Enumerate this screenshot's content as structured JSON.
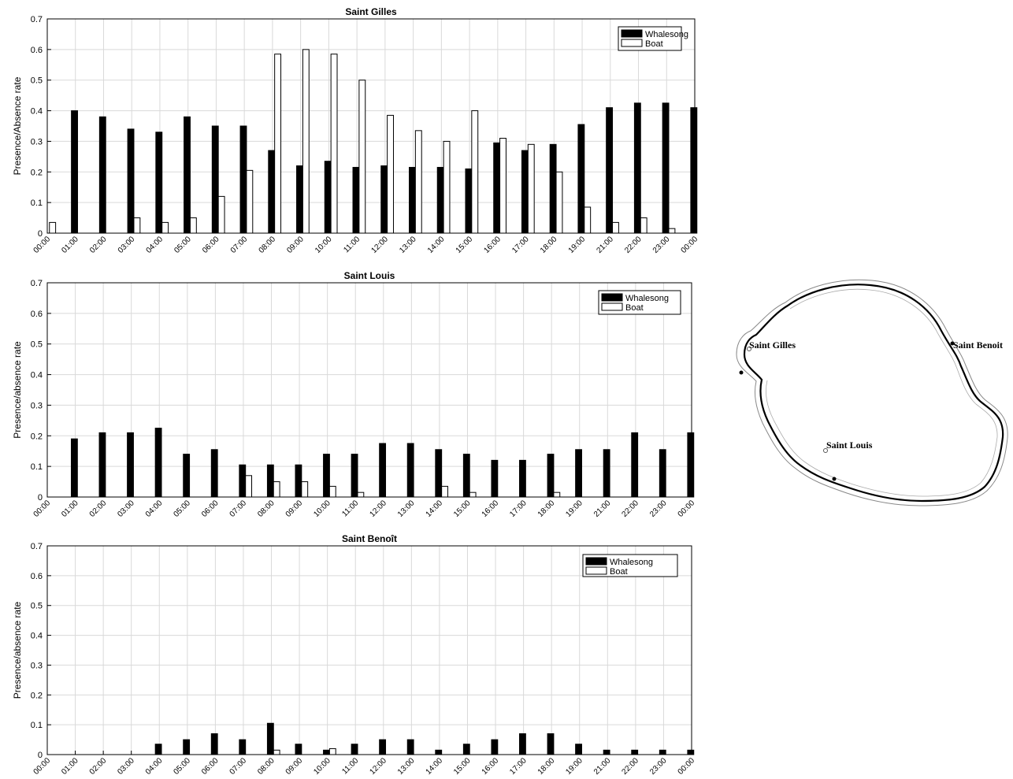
{
  "chart_data": [
    {
      "type": "bar",
      "title": "Saint Gilles",
      "ylabel": "Presence/Absence rate",
      "ylim": [
        0,
        0.7
      ],
      "yticks": [
        0,
        0.1,
        0.2,
        0.3,
        0.4,
        0.5,
        0.6,
        0.7
      ],
      "grid": true,
      "legend": "top-right",
      "categories": [
        "00:00",
        "01:00",
        "02:00",
        "03:00",
        "04:00",
        "05:00",
        "06:00",
        "07:00",
        "08:00",
        "09:00",
        "10:00",
        "11:00",
        "12:00",
        "13:00",
        "14:00",
        "15:00",
        "16:00",
        "17:00",
        "18:00",
        "19:00",
        "21:00",
        "22:00",
        "23:00",
        "00:00"
      ],
      "series": [
        {
          "name": "Whalesong",
          "color": "#000000",
          "values": [
            0,
            0.4,
            0.38,
            0.34,
            0.33,
            0.38,
            0.35,
            0.35,
            0.27,
            0.22,
            0.235,
            0.215,
            0.22,
            0.215,
            0.215,
            0.21,
            0.295,
            0.27,
            0.29,
            0.355,
            0.41,
            0.425,
            0.425,
            0.41
          ]
        },
        {
          "name": "Boat",
          "color": "#ffffff",
          "values": [
            0.035,
            0,
            0,
            0.05,
            0.035,
            0.05,
            0.12,
            0.205,
            0.585,
            0.6,
            0.585,
            0.5,
            0.385,
            0.335,
            0.3,
            0.4,
            0.31,
            0.29,
            0.2,
            0.085,
            0.035,
            0.05,
            0.015,
            0
          ]
        }
      ]
    },
    {
      "type": "bar",
      "title": "Saint Louis",
      "ylabel": "Presence/absence rate",
      "ylim": [
        0,
        0.7
      ],
      "yticks": [
        0,
        0.1,
        0.2,
        0.3,
        0.4,
        0.5,
        0.6,
        0.7
      ],
      "grid": true,
      "legend": "top-right",
      "categories": [
        "00:00",
        "01:00",
        "02:00",
        "03:00",
        "04:00",
        "05:00",
        "06:00",
        "07:00",
        "08:00",
        "09:00",
        "10:00",
        "11:00",
        "12:00",
        "13:00",
        "14:00",
        "15:00",
        "16:00",
        "17:00",
        "18:00",
        "19:00",
        "21:00",
        "22:00",
        "23:00",
        "00:00"
      ],
      "series": [
        {
          "name": "Whalesong",
          "color": "#000000",
          "values": [
            0,
            0.19,
            0.21,
            0.21,
            0.225,
            0.14,
            0.155,
            0.105,
            0.105,
            0.105,
            0.14,
            0.14,
            0.175,
            0.175,
            0.155,
            0.14,
            0.12,
            0.12,
            0.14,
            0.155,
            0.155,
            0.21,
            0.155,
            0.21
          ]
        },
        {
          "name": "Boat",
          "color": "#ffffff",
          "values": [
            0,
            0,
            0,
            0,
            0,
            0,
            0,
            0.07,
            0.05,
            0.05,
            0.035,
            0.015,
            0,
            0,
            0.035,
            0.015,
            0,
            0,
            0.015,
            0,
            0,
            0,
            0,
            0
          ]
        }
      ]
    },
    {
      "type": "bar",
      "title": "Saint Benoît",
      "ylabel": "Presence/absence rate",
      "ylim": [
        0,
        0.7
      ],
      "yticks": [
        0,
        0.1,
        0.2,
        0.3,
        0.4,
        0.5,
        0.6,
        0.7
      ],
      "grid": true,
      "legend": "top-right",
      "categories": [
        "00:00",
        "01:00",
        "02:00",
        "03:00",
        "04:00",
        "05:00",
        "06:00",
        "07:00",
        "08:00",
        "09:00",
        "10:00",
        "11:00",
        "12:00",
        "13:00",
        "14:00",
        "15:00",
        "16:00",
        "17:00",
        "18:00",
        "19:00",
        "21:00",
        "22:00",
        "23:00",
        "00:00"
      ],
      "series": [
        {
          "name": "Whalesong",
          "color": "#000000",
          "values": [
            0,
            0,
            0,
            0,
            0.035,
            0.05,
            0.07,
            0.05,
            0.105,
            0.035,
            0.015,
            0.035,
            0.05,
            0.05,
            0.015,
            0.035,
            0.05,
            0.07,
            0.07,
            0.035,
            0.015,
            0.015,
            0.015,
            0.015
          ]
        },
        {
          "name": "Boat",
          "color": "#ffffff",
          "values": [
            0,
            0,
            0,
            0,
            0,
            0,
            0,
            0,
            0.015,
            0,
            0.02,
            0,
            0,
            0,
            0,
            0,
            0,
            0,
            0,
            0,
            0,
            0,
            0,
            0
          ]
        }
      ]
    }
  ],
  "map": {
    "labels": {
      "saint_gilles": "Saint Gilles",
      "saint_benoit": "Saint Benoit",
      "saint_louis": "Saint Louis"
    }
  }
}
